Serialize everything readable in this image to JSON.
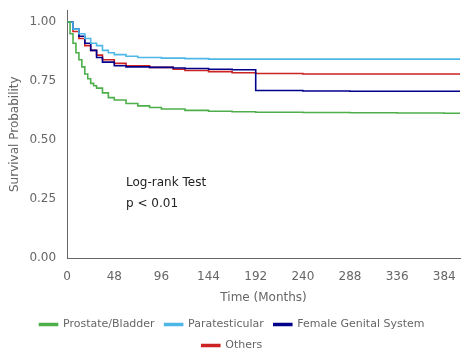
{
  "chart_data": {
    "type": "line",
    "line_style": "step",
    "title": "",
    "xlabel": "Time (Months)",
    "ylabel": "Survival Probability",
    "xlim": [
      0,
      400
    ],
    "ylim": [
      0.0,
      1.05
    ],
    "xticks": [
      0,
      48,
      96,
      144,
      192,
      240,
      288,
      336,
      384
    ],
    "yticks": [
      {
        "value": 0.0,
        "label": "0.00"
      },
      {
        "value": 0.25,
        "label": "0.25"
      },
      {
        "value": 0.5,
        "label": "0.50"
      },
      {
        "value": 0.75,
        "label": "0.75"
      },
      {
        "value": 1.0,
        "label": "1.00"
      }
    ],
    "grid": false,
    "legend": "bottom",
    "annotations": [
      {
        "text": "Log-rank Test",
        "x": 60,
        "y": 0.295
      },
      {
        "text": "p < 0.01",
        "x": 60,
        "y": 0.205
      }
    ],
    "series": [
      {
        "name": "Prostate/Bladder",
        "color": "#4daf4a",
        "x": [
          0,
          3,
          6,
          9,
          12,
          15,
          18,
          21,
          24,
          27,
          30,
          36,
          42,
          48,
          60,
          72,
          84,
          96,
          120,
          144,
          168,
          192,
          240,
          288,
          336,
          384,
          400
        ],
        "values": [
          1.0,
          0.95,
          0.91,
          0.87,
          0.84,
          0.81,
          0.78,
          0.76,
          0.74,
          0.73,
          0.72,
          0.7,
          0.68,
          0.67,
          0.655,
          0.645,
          0.638,
          0.632,
          0.626,
          0.622,
          0.62,
          0.618,
          0.617,
          0.616,
          0.615,
          0.614,
          0.614
        ]
      },
      {
        "name": "Paratesticular",
        "color": "#4db8e8",
        "x": [
          0,
          6,
          12,
          18,
          24,
          30,
          36,
          42,
          48,
          60,
          72,
          96,
          120,
          144,
          192,
          240,
          288,
          336,
          384,
          400
        ],
        "values": [
          1.0,
          0.97,
          0.95,
          0.93,
          0.91,
          0.9,
          0.88,
          0.87,
          0.862,
          0.855,
          0.85,
          0.847,
          0.845,
          0.843,
          0.843,
          0.843,
          0.843,
          0.843,
          0.843,
          0.843
        ]
      },
      {
        "name": "Female Genital System",
        "color": "#00008b",
        "x": [
          0,
          6,
          12,
          18,
          24,
          30,
          36,
          48,
          60,
          84,
          108,
          120,
          144,
          168,
          192,
          240,
          288,
          336,
          400
        ],
        "values": [
          1.0,
          0.97,
          0.94,
          0.91,
          0.88,
          0.85,
          0.83,
          0.815,
          0.81,
          0.808,
          0.805,
          0.803,
          0.8,
          0.798,
          0.71,
          0.708,
          0.707,
          0.707,
          0.707
        ]
      },
      {
        "name": "Others",
        "color": "#cc2222",
        "x": [
          0,
          6,
          12,
          18,
          24,
          30,
          36,
          48,
          60,
          84,
          108,
          120,
          144,
          168,
          192,
          240,
          288,
          336,
          400
        ],
        "values": [
          1.0,
          0.96,
          0.93,
          0.9,
          0.88,
          0.86,
          0.84,
          0.825,
          0.815,
          0.808,
          0.8,
          0.795,
          0.79,
          0.785,
          0.782,
          0.78,
          0.78,
          0.78,
          0.78
        ]
      }
    ]
  }
}
